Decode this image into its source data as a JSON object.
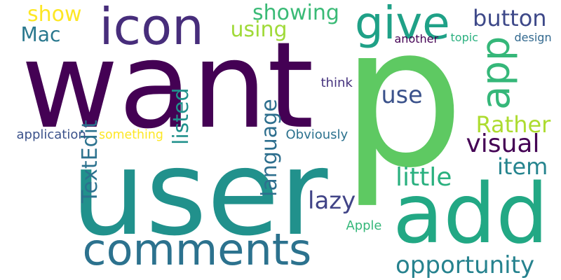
{
  "words": [
    {
      "key": "want",
      "text": "want",
      "color": "#440154"
    },
    {
      "key": "p",
      "text": "p",
      "color": "#5ec962"
    },
    {
      "key": "user",
      "text": "user",
      "color": "#21918c"
    },
    {
      "key": "comments",
      "text": "comments",
      "color": "#2c728e"
    },
    {
      "key": "add",
      "text": "add",
      "color": "#22a884"
    },
    {
      "key": "icon",
      "text": "icon",
      "color": "#472d7b"
    },
    {
      "key": "give",
      "text": "give",
      "color": "#1fa187"
    },
    {
      "key": "app",
      "text": "app",
      "color": "#35b779"
    },
    {
      "key": "show",
      "text": "show",
      "color": "#fde725"
    },
    {
      "key": "showing",
      "text": "showing",
      "color": "#3aba76"
    },
    {
      "key": "button",
      "text": "button",
      "color": "#3e4989"
    },
    {
      "key": "mac",
      "text": "Mac",
      "color": "#2a788e"
    },
    {
      "key": "using",
      "text": "using",
      "color": "#a0da39"
    },
    {
      "key": "another",
      "text": "another",
      "color": "#440154"
    },
    {
      "key": "topic",
      "text": "topic",
      "color": "#2ab07f"
    },
    {
      "key": "design",
      "text": "design",
      "color": "#31688e"
    },
    {
      "key": "use",
      "text": "use",
      "color": "#3b528b"
    },
    {
      "key": "listed",
      "text": "listed",
      "color": "#21918c"
    },
    {
      "key": "language",
      "text": "language",
      "color": "#2e6f8e"
    },
    {
      "key": "think",
      "text": "think",
      "color": "#46337e"
    },
    {
      "key": "rather",
      "text": "Rather",
      "color": "#addc30"
    },
    {
      "key": "visual",
      "text": "visual",
      "color": "#440154"
    },
    {
      "key": "textedit",
      "text": "TextEdit",
      "color": "#2c728e"
    },
    {
      "key": "item",
      "text": "item",
      "color": "#25848e"
    },
    {
      "key": "application",
      "text": "application",
      "color": "#3b528b"
    },
    {
      "key": "something",
      "text": "something",
      "color": "#fde725"
    },
    {
      "key": "obviously",
      "text": "Obviously",
      "color": "#2c728e"
    },
    {
      "key": "little",
      "text": "little",
      "color": "#2ab07f"
    },
    {
      "key": "lazy",
      "text": "lazy",
      "color": "#414487"
    },
    {
      "key": "apple",
      "text": "Apple",
      "color": "#35b779"
    },
    {
      "key": "opportunity",
      "text": "opportunity",
      "color": "#26828e"
    }
  ]
}
